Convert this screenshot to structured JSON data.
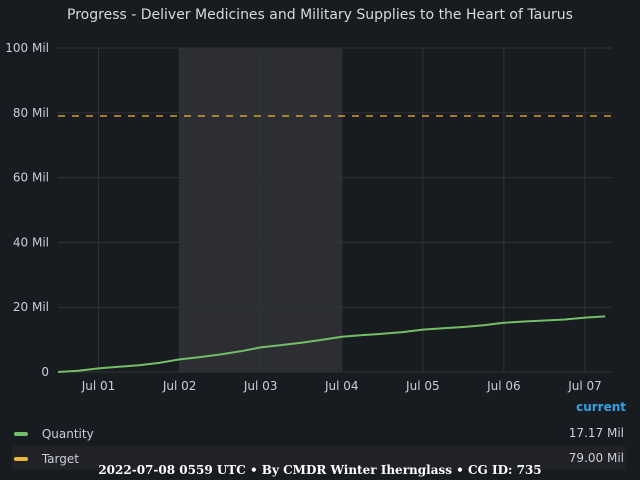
{
  "chart_data": {
    "type": "line",
    "title": "Progress - Deliver Medicines and Military Supplies to the Heart of Taurus",
    "xlabel": "",
    "ylabel": "",
    "ylim": [
      0,
      100
    ],
    "y_ticks": [
      0,
      20,
      40,
      60,
      80,
      100
    ],
    "y_tick_labels": [
      "0",
      "20 Mil",
      "40 Mil",
      "60 Mil",
      "80 Mil",
      "100 Mil"
    ],
    "x_range": [
      "2022-06-30T12:00",
      "2022-07-07T08:00"
    ],
    "x_ticks": [
      "2022-07-01",
      "2022-07-02",
      "2022-07-03",
      "2022-07-04",
      "2022-07-05",
      "2022-07-06",
      "2022-07-07"
    ],
    "x_tick_labels": [
      "Jul 01",
      "Jul 02",
      "Jul 03",
      "Jul 04",
      "Jul 05",
      "Jul 06",
      "Jul 07"
    ],
    "highlight_region": [
      "2022-07-02",
      "2022-07-04"
    ],
    "grid": true,
    "legend_position": "bottom",
    "legend_header": "current",
    "series": [
      {
        "name": "Quantity",
        "color": "#73bf69",
        "style": "solid",
        "current": "17.17 Mil",
        "x": [
          "2022-06-30T12:00",
          "2022-06-30T18:00",
          "2022-07-01T00:00",
          "2022-07-01T06:00",
          "2022-07-01T12:00",
          "2022-07-01T18:00",
          "2022-07-02T00:00",
          "2022-07-02T06:00",
          "2022-07-02T12:00",
          "2022-07-02T18:00",
          "2022-07-03T00:00",
          "2022-07-03T06:00",
          "2022-07-03T12:00",
          "2022-07-03T18:00",
          "2022-07-04T00:00",
          "2022-07-04T06:00",
          "2022-07-04T12:00",
          "2022-07-04T18:00",
          "2022-07-05T00:00",
          "2022-07-05T06:00",
          "2022-07-05T12:00",
          "2022-07-05T18:00",
          "2022-07-06T00:00",
          "2022-07-06T06:00",
          "2022-07-06T12:00",
          "2022-07-06T18:00",
          "2022-07-07T00:00",
          "2022-07-07T06:00"
        ],
        "y": [
          0.0,
          0.4,
          1.1,
          1.6,
          2.1,
          2.8,
          3.9,
          4.6,
          5.4,
          6.4,
          7.6,
          8.3,
          9.0,
          9.9,
          10.9,
          11.4,
          11.8,
          12.3,
          13.1,
          13.5,
          13.9,
          14.4,
          15.2,
          15.6,
          15.9,
          16.2,
          16.8,
          17.17
        ]
      },
      {
        "name": "Target",
        "color": "#eab839",
        "style": "dashed",
        "current": "79.00 Mil",
        "x": [
          "2022-06-30T12:00",
          "2022-07-07T08:00"
        ],
        "y": [
          79.0,
          79.0
        ]
      }
    ]
  },
  "footer": "2022-07-08 0559 UTC • By CMDR Winter Ihernglass • CG ID: 735"
}
